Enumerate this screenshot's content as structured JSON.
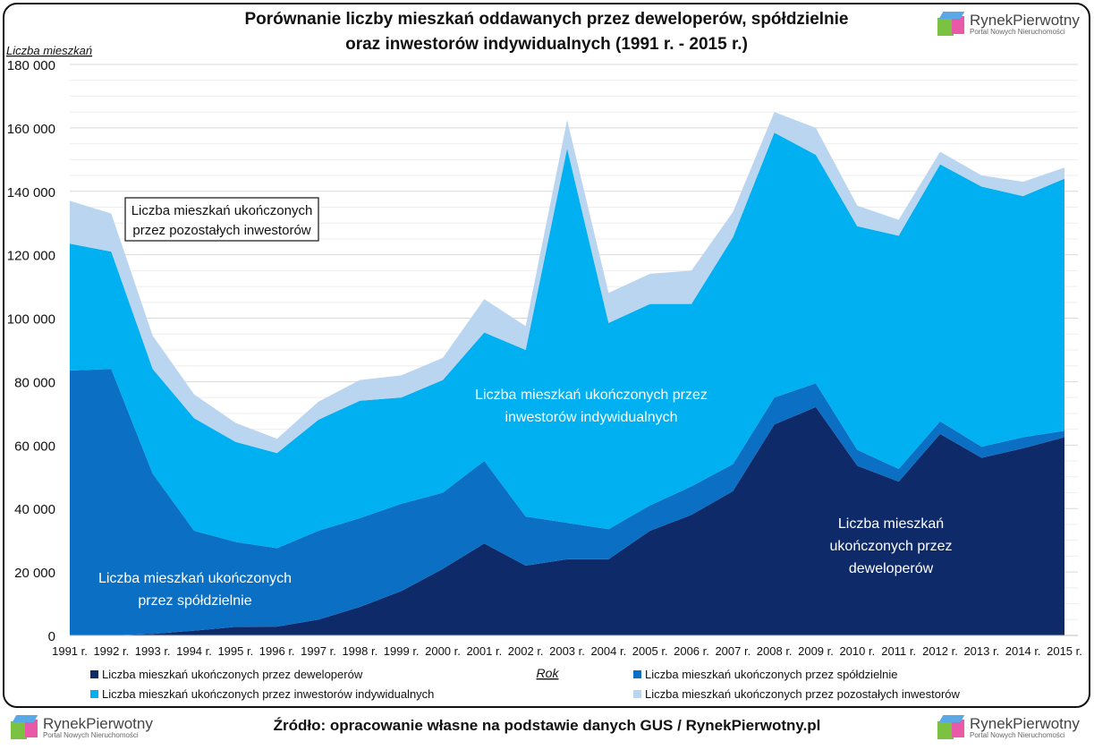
{
  "chart_data": {
    "type": "area",
    "stacked": true,
    "title": "Porównanie liczby mieszkań oddawanych przez deweloperów, spółdzielnie oraz inwestorów indywidualnych (1991 r. - 2015 r.)",
    "title_lines": [
      "Porównanie liczby mieszkań oddawanych przez deweloperów, spółdzielnie",
      "oraz inwestorów indywidualnych (1991 r. - 2015 r.)"
    ],
    "ylabel": "Liczba mieszkań",
    "xlabel": "Rok",
    "ylim": [
      0,
      180000
    ],
    "yticks": [
      0,
      20000,
      40000,
      60000,
      80000,
      100000,
      120000,
      140000,
      160000,
      180000
    ],
    "ytick_labels": [
      "0",
      "20 000",
      "40 000",
      "60 000",
      "80 000",
      "100 000",
      "120 000",
      "140 000",
      "160 000",
      "180 000"
    ],
    "grid": true,
    "legend_position": "bottom",
    "categories": [
      "1991 r.",
      "1992 r.",
      "1993 r.",
      "1994 r.",
      "1995 r.",
      "1996 r.",
      "1997 r.",
      "1998 r.",
      "1999 r.",
      "2000 r.",
      "2001 r.",
      "2002 r.",
      "2003 r.",
      "2004 r.",
      "2005 r.",
      "2006 r.",
      "2007 r.",
      "2008 r.",
      "2009 r.",
      "2010 r.",
      "2011 r.",
      "2012 r.",
      "2013 r.",
      "2014 r.",
      "2015 r."
    ],
    "series": [
      {
        "name": "Liczba mieszkań ukończonych przez deweloperów",
        "color": "#0f2a68",
        "values": [
          0,
          0,
          500,
          1500,
          2700,
          2800,
          5000,
          9000,
          14000,
          21000,
          29000,
          22000,
          24000,
          24000,
          33000,
          38000,
          45500,
          66500,
          72000,
          53500,
          48500,
          63500,
          56000,
          59000,
          62500
        ]
      },
      {
        "name": "Liczba mieszkań ukończonych przez spółdzielnie",
        "color": "#0b6fc4",
        "values": [
          83500,
          84000,
          50500,
          31500,
          26800,
          24700,
          28000,
          28000,
          27500,
          24000,
          26000,
          15500,
          11500,
          9500,
          8000,
          9000,
          8500,
          8500,
          7500,
          5000,
          4000,
          4000,
          3500,
          3500,
          2000
        ]
      },
      {
        "name": "Liczba mieszkań ukończonych przez inwestorów indywidualnych",
        "color": "#00b0f0",
        "values": [
          40000,
          37000,
          33000,
          35500,
          31500,
          30000,
          35000,
          37000,
          33500,
          35500,
          40500,
          52500,
          118000,
          65000,
          63500,
          57500,
          71500,
          83500,
          72000,
          70500,
          73500,
          81000,
          82000,
          76000,
          79500
        ]
      },
      {
        "name": "Liczba mieszkań ukończonych przez pozostałych inwestorów",
        "color": "#b9d5ef",
        "values": [
          13500,
          12000,
          10500,
          7500,
          6000,
          4500,
          5700,
          6500,
          7000,
          7000,
          10500,
          7500,
          9000,
          9500,
          9500,
          10500,
          8000,
          6500,
          8500,
          6500,
          5000,
          4000,
          3500,
          4500,
          3500
        ]
      }
    ],
    "annotations": {
      "others": [
        "Liczba mieszkań ukończonych",
        "przez pozostałych inwestorów"
      ],
      "individual": [
        "Liczba mieszkań ukończonych przez",
        "inwestorów indywidualnych"
      ],
      "cooperatives": [
        "Liczba mieszkań ukończonych",
        "przez spółdzielnie"
      ],
      "developers": [
        "Liczba mieszkań",
        "ukończonych przez",
        "deweloperów"
      ]
    }
  },
  "logo": {
    "brand": "RynekPierwotny",
    "tagline": "Portal Nowych Nieruchomości"
  },
  "source": "Źródło: opracowanie własne na podstawie danych GUS / RynekPierwotny.pl"
}
